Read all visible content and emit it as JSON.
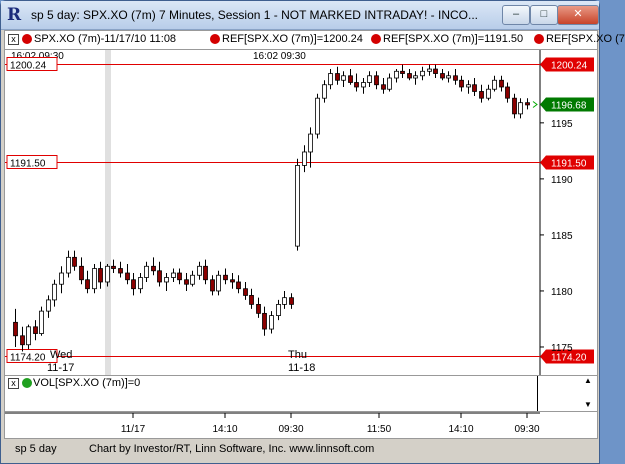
{
  "window": {
    "title": "sp 5 day: SPX.XO (7m) 7 Minutes, Session 1 - NOT MARKED INTRADAY! - INCO...",
    "buttons": {
      "minimize": "–",
      "maximize": "□",
      "close": "✕"
    }
  },
  "toolbar": {
    "series_label": "SPX.XO (7m)-11/17/10 11:08",
    "ref1": "REF[SPX.XO (7m)]=1200.24",
    "ref2": "REF[SPX.XO (7m)]=1191.50",
    "ref3": "REF[SPX.XO (7",
    "close_glyph": "x",
    "dot_color": "#d40000"
  },
  "chart": {
    "top_left_label": "16:02  09:30",
    "mid_label": "16:02  09:30",
    "ref_lines": [
      {
        "value": 1200.24,
        "label": "1200.24",
        "color": "#e00000"
      },
      {
        "value": 1191.5,
        "label": "1191.50",
        "color": "#e00000"
      },
      {
        "value": 1174.2,
        "label": "1174.20",
        "color": "#e00000"
      }
    ],
    "last_price": "1196.68",
    "last_price_color": "#007a00",
    "day_labels": [
      {
        "day": "Wed",
        "date": "11-17"
      },
      {
        "day": "Thu",
        "date": "11-18"
      }
    ],
    "y_ticks": [
      "1195",
      "1190",
      "1185",
      "1180",
      "1175"
    ]
  },
  "volume": {
    "label": "VOL[SPX.XO (7m)]=0",
    "dot_color": "#20a020",
    "close_glyph": "x",
    "arrow_up": "▲",
    "arrow_down": "▼"
  },
  "time_axis": {
    "ticks": [
      "11/17",
      "14:10",
      "09:30",
      "11:50",
      "14:10",
      "09:30"
    ]
  },
  "status_bar": {
    "left": "sp 5 day",
    "credit": "Chart by Investor/RT, Linn Software, Inc. www.linnsoft.com"
  },
  "chart_data": {
    "type": "candlestick",
    "title": "",
    "xlabel": "",
    "ylabel": "",
    "ylim": [
      1172.5,
      1201.5
    ],
    "candles": [
      {
        "o": 1177.2,
        "h": 1178.4,
        "l": 1175.0,
        "c": 1176.0
      },
      {
        "o": 1176.0,
        "h": 1176.8,
        "l": 1174.6,
        "c": 1175.2
      },
      {
        "o": 1175.2,
        "h": 1177.0,
        "l": 1174.8,
        "c": 1176.8
      },
      {
        "o": 1176.8,
        "h": 1177.4,
        "l": 1175.6,
        "c": 1176.2
      },
      {
        "o": 1176.2,
        "h": 1178.6,
        "l": 1176.0,
        "c": 1178.2
      },
      {
        "o": 1178.2,
        "h": 1179.6,
        "l": 1177.6,
        "c": 1179.2
      },
      {
        "o": 1179.2,
        "h": 1181.0,
        "l": 1178.6,
        "c": 1180.6
      },
      {
        "o": 1180.6,
        "h": 1182.2,
        "l": 1179.8,
        "c": 1181.6
      },
      {
        "o": 1181.6,
        "h": 1183.6,
        "l": 1181.2,
        "c": 1183.0
      },
      {
        "o": 1183.0,
        "h": 1183.6,
        "l": 1181.8,
        "c": 1182.2
      },
      {
        "o": 1182.2,
        "h": 1183.0,
        "l": 1180.6,
        "c": 1181.0
      },
      {
        "o": 1181.0,
        "h": 1181.8,
        "l": 1179.8,
        "c": 1180.2
      },
      {
        "o": 1180.2,
        "h": 1182.4,
        "l": 1179.8,
        "c": 1182.0
      },
      {
        "o": 1182.0,
        "h": 1182.6,
        "l": 1180.2,
        "c": 1180.8
      },
      {
        "o": 1180.8,
        "h": 1182.4,
        "l": 1180.4,
        "c": 1182.2
      },
      {
        "o": 1182.2,
        "h": 1182.8,
        "l": 1181.6,
        "c": 1182.0
      },
      {
        "o": 1182.0,
        "h": 1182.6,
        "l": 1181.2,
        "c": 1181.6
      },
      {
        "o": 1181.6,
        "h": 1182.4,
        "l": 1180.6,
        "c": 1181.0
      },
      {
        "o": 1181.0,
        "h": 1181.6,
        "l": 1179.6,
        "c": 1180.2
      },
      {
        "o": 1180.2,
        "h": 1181.6,
        "l": 1179.8,
        "c": 1181.2
      },
      {
        "o": 1181.2,
        "h": 1182.6,
        "l": 1180.8,
        "c": 1182.2
      },
      {
        "o": 1182.2,
        "h": 1183.0,
        "l": 1181.4,
        "c": 1181.8
      },
      {
        "o": 1181.8,
        "h": 1182.6,
        "l": 1180.4,
        "c": 1180.8
      },
      {
        "o": 1180.8,
        "h": 1181.6,
        "l": 1180.0,
        "c": 1181.2
      },
      {
        "o": 1181.2,
        "h": 1182.0,
        "l": 1180.8,
        "c": 1181.6
      },
      {
        "o": 1181.6,
        "h": 1182.0,
        "l": 1180.6,
        "c": 1181.0
      },
      {
        "o": 1181.0,
        "h": 1181.6,
        "l": 1180.0,
        "c": 1180.6
      },
      {
        "o": 1180.6,
        "h": 1181.8,
        "l": 1180.4,
        "c": 1181.4
      },
      {
        "o": 1181.4,
        "h": 1182.6,
        "l": 1181.0,
        "c": 1182.2
      },
      {
        "o": 1182.2,
        "h": 1182.8,
        "l": 1180.6,
        "c": 1181.0
      },
      {
        "o": 1181.0,
        "h": 1181.4,
        "l": 1179.6,
        "c": 1180.0
      },
      {
        "o": 1180.0,
        "h": 1181.8,
        "l": 1179.6,
        "c": 1181.4
      },
      {
        "o": 1181.4,
        "h": 1182.0,
        "l": 1180.6,
        "c": 1181.0
      },
      {
        "o": 1181.0,
        "h": 1181.6,
        "l": 1180.2,
        "c": 1180.8
      },
      {
        "o": 1180.8,
        "h": 1181.4,
        "l": 1179.8,
        "c": 1180.2
      },
      {
        "o": 1180.2,
        "h": 1180.8,
        "l": 1179.2,
        "c": 1179.6
      },
      {
        "o": 1179.6,
        "h": 1180.2,
        "l": 1178.4,
        "c": 1178.8
      },
      {
        "o": 1178.8,
        "h": 1179.4,
        "l": 1177.6,
        "c": 1178.0
      },
      {
        "o": 1178.0,
        "h": 1178.6,
        "l": 1176.0,
        "c": 1176.6
      },
      {
        "o": 1176.6,
        "h": 1178.2,
        "l": 1176.2,
        "c": 1177.8
      },
      {
        "o": 1177.8,
        "h": 1179.2,
        "l": 1177.4,
        "c": 1178.8
      },
      {
        "o": 1178.8,
        "h": 1180.0,
        "l": 1178.4,
        "c": 1179.4
      },
      {
        "o": 1179.4,
        "h": 1179.8,
        "l": 1178.4,
        "c": 1178.8
      },
      {
        "o": 1184.0,
        "h": 1191.8,
        "l": 1183.6,
        "c": 1191.2
      },
      {
        "o": 1191.2,
        "h": 1193.0,
        "l": 1190.6,
        "c": 1192.4
      },
      {
        "o": 1192.4,
        "h": 1194.6,
        "l": 1191.0,
        "c": 1194.0
      },
      {
        "o": 1194.0,
        "h": 1197.6,
        "l": 1193.6,
        "c": 1197.2
      },
      {
        "o": 1197.2,
        "h": 1198.8,
        "l": 1196.8,
        "c": 1198.4
      },
      {
        "o": 1198.4,
        "h": 1199.8,
        "l": 1198.0,
        "c": 1199.4
      },
      {
        "o": 1199.4,
        "h": 1200.0,
        "l": 1198.4,
        "c": 1198.8
      },
      {
        "o": 1198.8,
        "h": 1199.6,
        "l": 1198.2,
        "c": 1199.2
      },
      {
        "o": 1199.2,
        "h": 1199.8,
        "l": 1198.4,
        "c": 1198.6
      },
      {
        "o": 1198.6,
        "h": 1199.4,
        "l": 1197.8,
        "c": 1198.2
      },
      {
        "o": 1198.2,
        "h": 1199.0,
        "l": 1197.6,
        "c": 1198.6
      },
      {
        "o": 1198.6,
        "h": 1199.6,
        "l": 1198.2,
        "c": 1199.2
      },
      {
        "o": 1199.2,
        "h": 1199.6,
        "l": 1198.0,
        "c": 1198.4
      },
      {
        "o": 1198.4,
        "h": 1199.0,
        "l": 1197.6,
        "c": 1198.0
      },
      {
        "o": 1198.0,
        "h": 1199.4,
        "l": 1197.8,
        "c": 1199.0
      },
      {
        "o": 1199.0,
        "h": 1199.8,
        "l": 1198.6,
        "c": 1199.6
      },
      {
        "o": 1199.6,
        "h": 1200.2,
        "l": 1199.0,
        "c": 1199.4
      },
      {
        "o": 1199.4,
        "h": 1199.8,
        "l": 1198.8,
        "c": 1199.0
      },
      {
        "o": 1199.0,
        "h": 1199.6,
        "l": 1198.4,
        "c": 1199.2
      },
      {
        "o": 1199.2,
        "h": 1200.0,
        "l": 1198.8,
        "c": 1199.6
      },
      {
        "o": 1199.6,
        "h": 1200.2,
        "l": 1199.2,
        "c": 1199.8
      },
      {
        "o": 1199.8,
        "h": 1200.2,
        "l": 1199.0,
        "c": 1199.4
      },
      {
        "o": 1199.4,
        "h": 1199.8,
        "l": 1198.8,
        "c": 1199.0
      },
      {
        "o": 1199.0,
        "h": 1199.6,
        "l": 1198.6,
        "c": 1199.2
      },
      {
        "o": 1199.2,
        "h": 1199.8,
        "l": 1198.4,
        "c": 1198.8
      },
      {
        "o": 1198.8,
        "h": 1199.2,
        "l": 1197.8,
        "c": 1198.2
      },
      {
        "o": 1198.2,
        "h": 1198.8,
        "l": 1197.6,
        "c": 1198.4
      },
      {
        "o": 1198.4,
        "h": 1199.0,
        "l": 1197.4,
        "c": 1197.8
      },
      {
        "o": 1197.8,
        "h": 1198.4,
        "l": 1196.8,
        "c": 1197.2
      },
      {
        "o": 1197.2,
        "h": 1198.4,
        "l": 1197.0,
        "c": 1198.0
      },
      {
        "o": 1198.0,
        "h": 1199.2,
        "l": 1197.8,
        "c": 1198.8
      },
      {
        "o": 1198.8,
        "h": 1199.2,
        "l": 1197.8,
        "c": 1198.2
      },
      {
        "o": 1198.2,
        "h": 1198.6,
        "l": 1196.8,
        "c": 1197.2
      },
      {
        "o": 1197.2,
        "h": 1197.6,
        "l": 1195.4,
        "c": 1195.8
      },
      {
        "o": 1195.8,
        "h": 1197.2,
        "l": 1195.4,
        "c": 1196.8
      },
      {
        "o": 1196.8,
        "h": 1197.2,
        "l": 1196.2,
        "c": 1196.6
      }
    ]
  }
}
